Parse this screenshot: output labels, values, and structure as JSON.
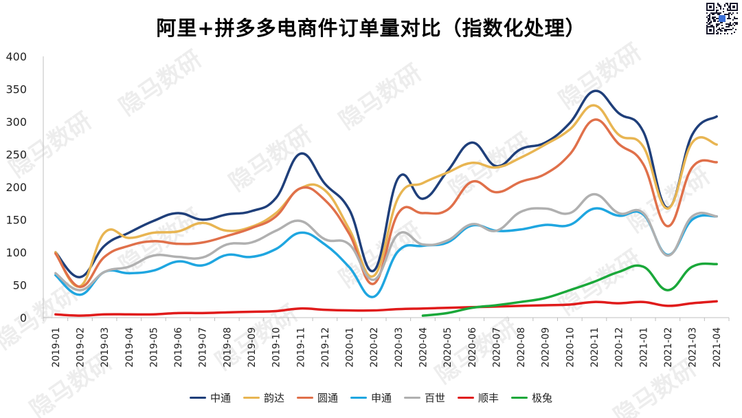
{
  "chart_data": {
    "type": "line",
    "title": "阿里+拼多多电商件订单量对比（指数化处理）",
    "categories": [
      "2019-01",
      "2019-02",
      "2019-03",
      "2019-04",
      "2019-05",
      "2019-06",
      "2019-07",
      "2019-08",
      "2019-09",
      "2019-10",
      "2019-11",
      "2019-12",
      "2020-01",
      "2020-02",
      "2020-03",
      "2020-04",
      "2020-05",
      "2020-06",
      "2020-07",
      "2020-08",
      "2020-09",
      "2020-10",
      "2020-11",
      "2020-12",
      "2021-01",
      "2021-02",
      "2021-03",
      "2021-04"
    ],
    "ylim": [
      0,
      400
    ],
    "yticks": [
      "0",
      "50",
      "100",
      "150",
      "200",
      "250",
      "300",
      "350",
      "400"
    ],
    "ytick_values": [
      0,
      50,
      100,
      150,
      200,
      250,
      300,
      350,
      400
    ],
    "grid": false,
    "legend_position": "bottom",
    "series": [
      {
        "name": "中通",
        "color": "#1f3f7a",
        "values": [
          100,
          62,
          110,
          130,
          148,
          160,
          150,
          158,
          163,
          183,
          251,
          205,
          165,
          72,
          214,
          182,
          224,
          268,
          232,
          258,
          268,
          298,
          347,
          313,
          285,
          168,
          280,
          308
        ]
      },
      {
        "name": "韵达",
        "color": "#e8b552",
        "values": [
          100,
          48,
          130,
          122,
          130,
          132,
          145,
          133,
          139,
          160,
          198,
          195,
          135,
          64,
          184,
          206,
          222,
          237,
          230,
          245,
          265,
          288,
          325,
          280,
          262,
          167,
          268,
          265
        ]
      },
      {
        "name": "圆通",
        "color": "#e0704a",
        "values": [
          98,
          47,
          93,
          110,
          117,
          113,
          115,
          125,
          137,
          155,
          198,
          180,
          128,
          52,
          160,
          160,
          165,
          208,
          192,
          208,
          220,
          250,
          303,
          266,
          235,
          140,
          230,
          238
        ]
      },
      {
        "name": "申通",
        "color": "#1fa6e0",
        "values": [
          65,
          35,
          70,
          68,
          72,
          86,
          80,
          96,
          93,
          105,
          130,
          112,
          77,
          32,
          102,
          110,
          115,
          141,
          133,
          135,
          142,
          142,
          167,
          156,
          158,
          96,
          150,
          155
        ]
      },
      {
        "name": "百世",
        "color": "#b0b0b0",
        "values": [
          68,
          42,
          70,
          78,
          95,
          93,
          92,
          112,
          115,
          133,
          148,
          120,
          112,
          58,
          128,
          112,
          118,
          143,
          133,
          162,
          167,
          160,
          189,
          160,
          160,
          95,
          155,
          155
        ]
      },
      {
        "name": "顺丰",
        "color": "#e01b1b",
        "values": [
          5,
          3,
          5,
          5,
          5,
          7,
          7,
          8,
          9,
          10,
          14,
          12,
          11,
          11,
          13,
          14,
          15,
          16,
          17,
          18,
          19,
          20,
          24,
          22,
          24,
          18,
          22,
          25
        ]
      },
      {
        "name": "极兔",
        "color": "#1aa83a",
        "values": [
          null,
          null,
          null,
          null,
          null,
          null,
          null,
          null,
          null,
          null,
          null,
          null,
          null,
          null,
          null,
          3,
          7,
          15,
          19,
          24,
          30,
          42,
          55,
          70,
          78,
          42,
          78,
          82
        ]
      }
    ]
  }
}
